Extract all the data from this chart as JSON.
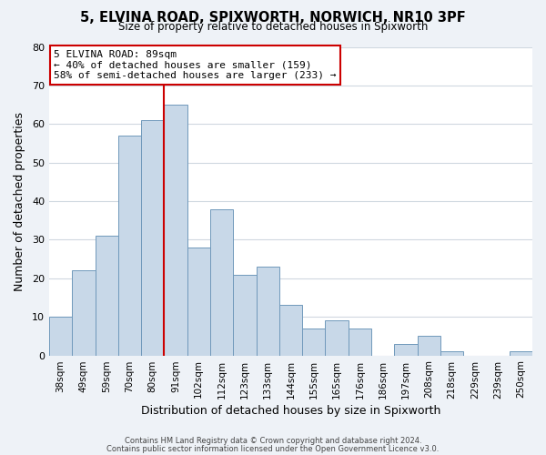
{
  "title": "5, ELVINA ROAD, SPIXWORTH, NORWICH, NR10 3PF",
  "subtitle": "Size of property relative to detached houses in Spixworth",
  "xlabel": "Distribution of detached houses by size in Spixworth",
  "ylabel": "Number of detached properties",
  "bar_color": "#c8d8e8",
  "bar_edge_color": "#7099bb",
  "categories": [
    "38sqm",
    "49sqm",
    "59sqm",
    "70sqm",
    "80sqm",
    "91sqm",
    "102sqm",
    "112sqm",
    "123sqm",
    "133sqm",
    "144sqm",
    "155sqm",
    "165sqm",
    "176sqm",
    "186sqm",
    "197sqm",
    "208sqm",
    "218sqm",
    "229sqm",
    "239sqm",
    "250sqm"
  ],
  "values": [
    10,
    22,
    31,
    57,
    61,
    65,
    28,
    38,
    21,
    23,
    13,
    7,
    9,
    7,
    0,
    3,
    5,
    1,
    0,
    0,
    1
  ],
  "ylim": [
    0,
    80
  ],
  "yticks": [
    0,
    10,
    20,
    30,
    40,
    50,
    60,
    70,
    80
  ],
  "property_label": "5 ELVINA ROAD: 89sqm",
  "annotation_line1": "← 40% of detached houses are smaller (159)",
  "annotation_line2": "58% of semi-detached houses are larger (233) →",
  "annotation_box_color": "white",
  "annotation_box_edge_color": "#cc0000",
  "vline_color": "#cc0000",
  "vline_x_index": 4.5,
  "footer1": "Contains HM Land Registry data © Crown copyright and database right 2024.",
  "footer2": "Contains public sector information licensed under the Open Government Licence v3.0.",
  "background_color": "#eef2f7",
  "plot_background": "white",
  "grid_color": "#d0d8e0"
}
